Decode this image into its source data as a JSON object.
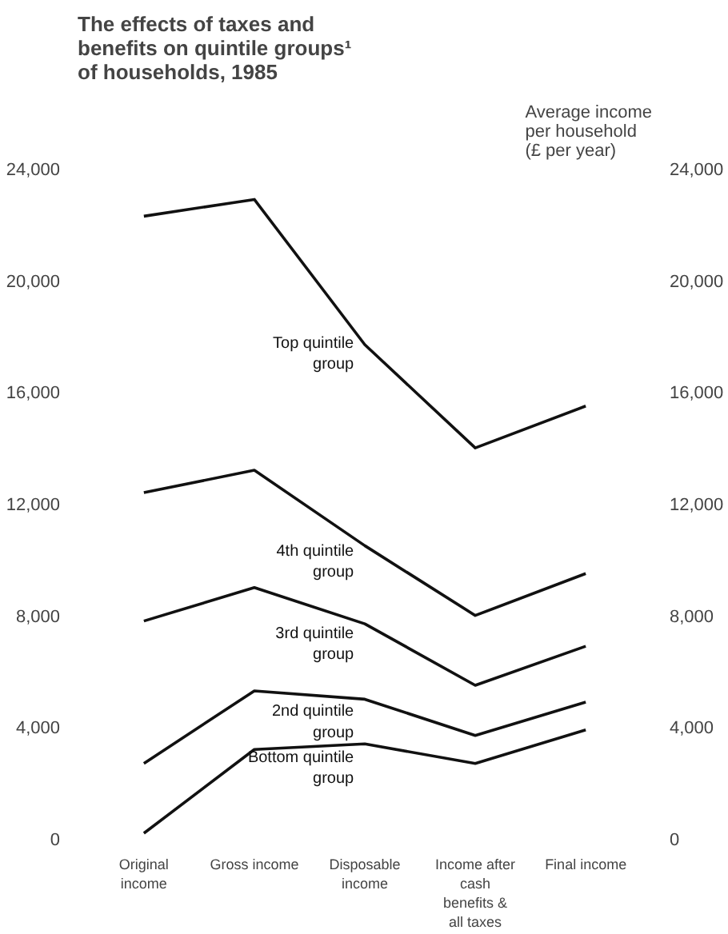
{
  "chart_data": {
    "type": "line",
    "title": "The effects of taxes and\nbenefits on quintile groups¹\nof households, 1985",
    "y2label": "Average income\nper household\n(£ per year)",
    "categories": [
      "Original income",
      "Gross income",
      "Disposable income",
      "Income after cash benefits & all taxes",
      "Final income"
    ],
    "series": [
      {
        "name": "Top quintile group",
        "color": "#111111",
        "values": [
          22300,
          22900,
          17700,
          14000,
          15500
        ]
      },
      {
        "name": "4th quintile group",
        "color": "#111111",
        "values": [
          12400,
          13200,
          10500,
          8000,
          9500
        ]
      },
      {
        "name": "3rd quintile group",
        "color": "#111111",
        "values": [
          7800,
          9000,
          7700,
          5500,
          6900
        ]
      },
      {
        "name": "2nd quintile group",
        "color": "#111111",
        "values": [
          2700,
          5300,
          5000,
          3700,
          4900
        ]
      },
      {
        "name": "Bottom quintile group",
        "color": "#111111",
        "values": [
          200,
          3200,
          3400,
          2700,
          3900
        ]
      }
    ],
    "ylim": [
      0,
      24000
    ],
    "yticks": [
      {
        "value": 0,
        "label": "0"
      },
      {
        "value": 4000,
        "label": "4,000"
      },
      {
        "value": 8000,
        "label": "8,000"
      },
      {
        "value": 12000,
        "label": "12,000"
      },
      {
        "value": 16000,
        "label": "16,000"
      },
      {
        "value": 20000,
        "label": "20,000"
      },
      {
        "value": 24000,
        "label": "24,000"
      }
    ],
    "y2lim": [
      0,
      24000
    ],
    "y2ticks": [
      {
        "value": 0,
        "label": "0"
      },
      {
        "value": 4000,
        "label": "4,000"
      },
      {
        "value": 8000,
        "label": "8,000"
      },
      {
        "value": 12000,
        "label": "12,000"
      },
      {
        "value": 16000,
        "label": "16,000"
      },
      {
        "value": 20000,
        "label": "20,000"
      },
      {
        "value": 24000,
        "label": "24,000"
      }
    ],
    "grid": false
  }
}
